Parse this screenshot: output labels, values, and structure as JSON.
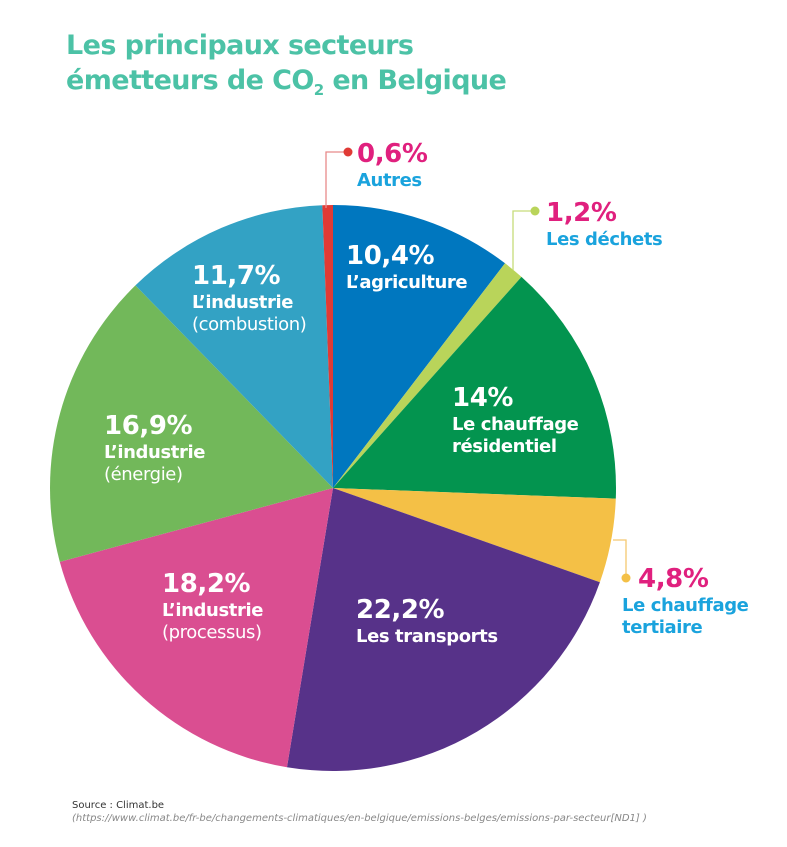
{
  "title": {
    "line1": "Les principaux secteurs",
    "line2_pre": "émetteurs de CO",
    "line2_sub": "2",
    "line2_post": " en Belgique"
  },
  "chart_data": {
    "type": "pie",
    "title": "Les principaux secteurs émetteurs de CO2 en Belgique",
    "start_angle_deg": 0,
    "direction": "clockwise",
    "slices": [
      {
        "label": "L’agriculture",
        "value": 10.4,
        "display": "10,4%",
        "color": "#0077bf"
      },
      {
        "label": "Les déchets",
        "value": 1.2,
        "display": "1,2%",
        "color": "#b9d45a"
      },
      {
        "label": "Le chauffage résidentiel",
        "value": 14.0,
        "display": "14%",
        "color": "#03944f"
      },
      {
        "label": "Le chauffage tertiaire",
        "value": 4.8,
        "display": "4,8%",
        "color": "#f4c046"
      },
      {
        "label": "Les transports",
        "value": 22.2,
        "display": "22,2%",
        "color": "#573289"
      },
      {
        "label": "L’industrie (processus)",
        "value": 18.2,
        "display": "18,2%",
        "color": "#da4e91"
      },
      {
        "label": "L’industrie (énergie)",
        "value": 16.9,
        "display": "16,9%",
        "color": "#72b85a"
      },
      {
        "label": "L’industrie (combustion)",
        "value": 11.7,
        "display": "11,7%",
        "color": "#33a2c4"
      },
      {
        "label": "Autres",
        "value": 0.6,
        "display": "0,6%",
        "color": "#e03a35"
      }
    ]
  },
  "labels": {
    "agriculture": {
      "pct": "10,4%",
      "name": "L’agriculture"
    },
    "dechets": {
      "pct": "1,2%",
      "name": "Les déchets"
    },
    "residentiel": {
      "pct": "14%",
      "name": "Le chauffage",
      "name2": "résidentiel"
    },
    "tertiaire": {
      "pct": "4,8%",
      "name": "Le chauffage",
      "name2": "tertiaire"
    },
    "transports": {
      "pct": "22,2%",
      "name": "Les transports"
    },
    "processus": {
      "pct": "18,2%",
      "name": "L’industrie",
      "sub": "(processus)"
    },
    "energie": {
      "pct": "16,9%",
      "name": "L’industrie",
      "sub": "(énergie)"
    },
    "combustion": {
      "pct": "11,7%",
      "name": "L’industrie",
      "sub": "(combustion)"
    },
    "autres": {
      "pct": "0,6%",
      "name": "Autres"
    }
  },
  "source": {
    "title": "Source : Climat.be",
    "url": "(https://www.climat.be/fr-be/changements-climatiques/en-belgique/emissions-belges/emissions-par-secteur[ND1] )"
  }
}
